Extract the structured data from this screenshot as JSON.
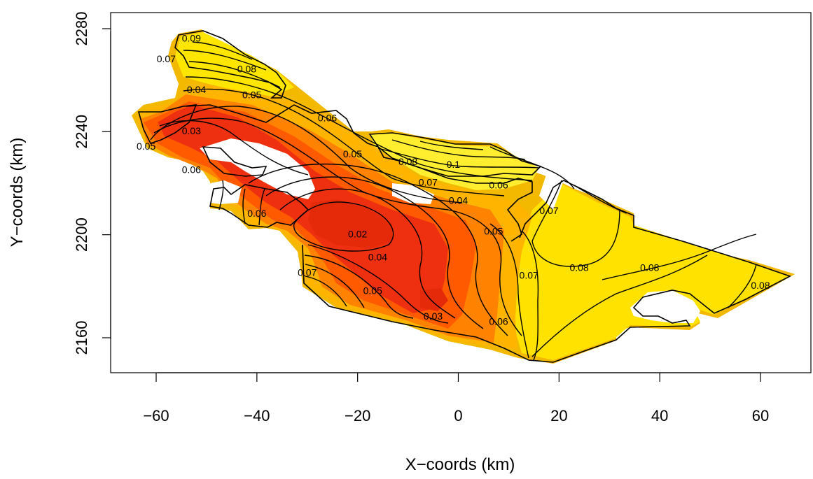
{
  "chart_data": {
    "type": "heatmap",
    "title": "",
    "xlabel": "X−coords (km)",
    "ylabel": "Y−coords (km)",
    "xlim": [
      -70,
      70
    ],
    "ylim": [
      2148,
      2284
    ],
    "x_ticks": [
      "−60",
      "−40",
      "−20",
      "0",
      "20",
      "40",
      "60"
    ],
    "x_tick_values": [
      -60,
      -40,
      -20,
      0,
      20,
      40,
      60
    ],
    "y_ticks": [
      "2160",
      "2200",
      "2240",
      "2280"
    ],
    "y_tick_values": [
      2160,
      2200,
      2240,
      2280
    ],
    "color_scale": {
      "low": "#e8280a",
      "mid_low": "#ff4a00",
      "mid": "#ff8c00",
      "mid_high": "#ffc000",
      "high": "#ffff00",
      "halo_outer": "#f5c400"
    },
    "contour_labels": [
      {
        "text": "0.09",
        "x": -53,
        "y": 2276
      },
      {
        "text": "0.07",
        "x": -58,
        "y": 2268
      },
      {
        "text": "0.08",
        "x": -42,
        "y": 2264
      },
      {
        "text": "0.04",
        "x": -52,
        "y": 2256
      },
      {
        "text": "0.05",
        "x": -41,
        "y": 2254
      },
      {
        "text": "0.06",
        "x": -26,
        "y": 2245
      },
      {
        "text": "0.03",
        "x": -53,
        "y": 2240
      },
      {
        "text": "0.05",
        "x": -62,
        "y": 2234
      },
      {
        "text": "0.05",
        "x": -21,
        "y": 2231
      },
      {
        "text": "0.08",
        "x": -10,
        "y": 2228
      },
      {
        "text": "0.1",
        "x": -1,
        "y": 2227
      },
      {
        "text": "0.06",
        "x": -53,
        "y": 2225
      },
      {
        "text": "0.07",
        "x": -6,
        "y": 2220
      },
      {
        "text": "0.06",
        "x": 8,
        "y": 2219
      },
      {
        "text": "0.04",
        "x": 0,
        "y": 2213
      },
      {
        "text": "0.06",
        "x": -40,
        "y": 2208
      },
      {
        "text": "0.02",
        "x": -20,
        "y": 2200
      },
      {
        "text": "0.07",
        "x": 18,
        "y": 2209
      },
      {
        "text": "0.05",
        "x": 7,
        "y": 2201
      },
      {
        "text": "0.04",
        "x": -16,
        "y": 2191
      },
      {
        "text": "0.07",
        "x": -30,
        "y": 2185
      },
      {
        "text": "0.05",
        "x": -17,
        "y": 2178
      },
      {
        "text": "0.07",
        "x": 14,
        "y": 2184
      },
      {
        "text": "0.08",
        "x": 24,
        "y": 2187
      },
      {
        "text": "0.08",
        "x": 38,
        "y": 2187
      },
      {
        "text": "0.08",
        "x": 60,
        "y": 2180
      },
      {
        "text": "0.03",
        "x": -5,
        "y": 2168
      },
      {
        "text": "0.06",
        "x": 8,
        "y": 2166
      }
    ]
  }
}
